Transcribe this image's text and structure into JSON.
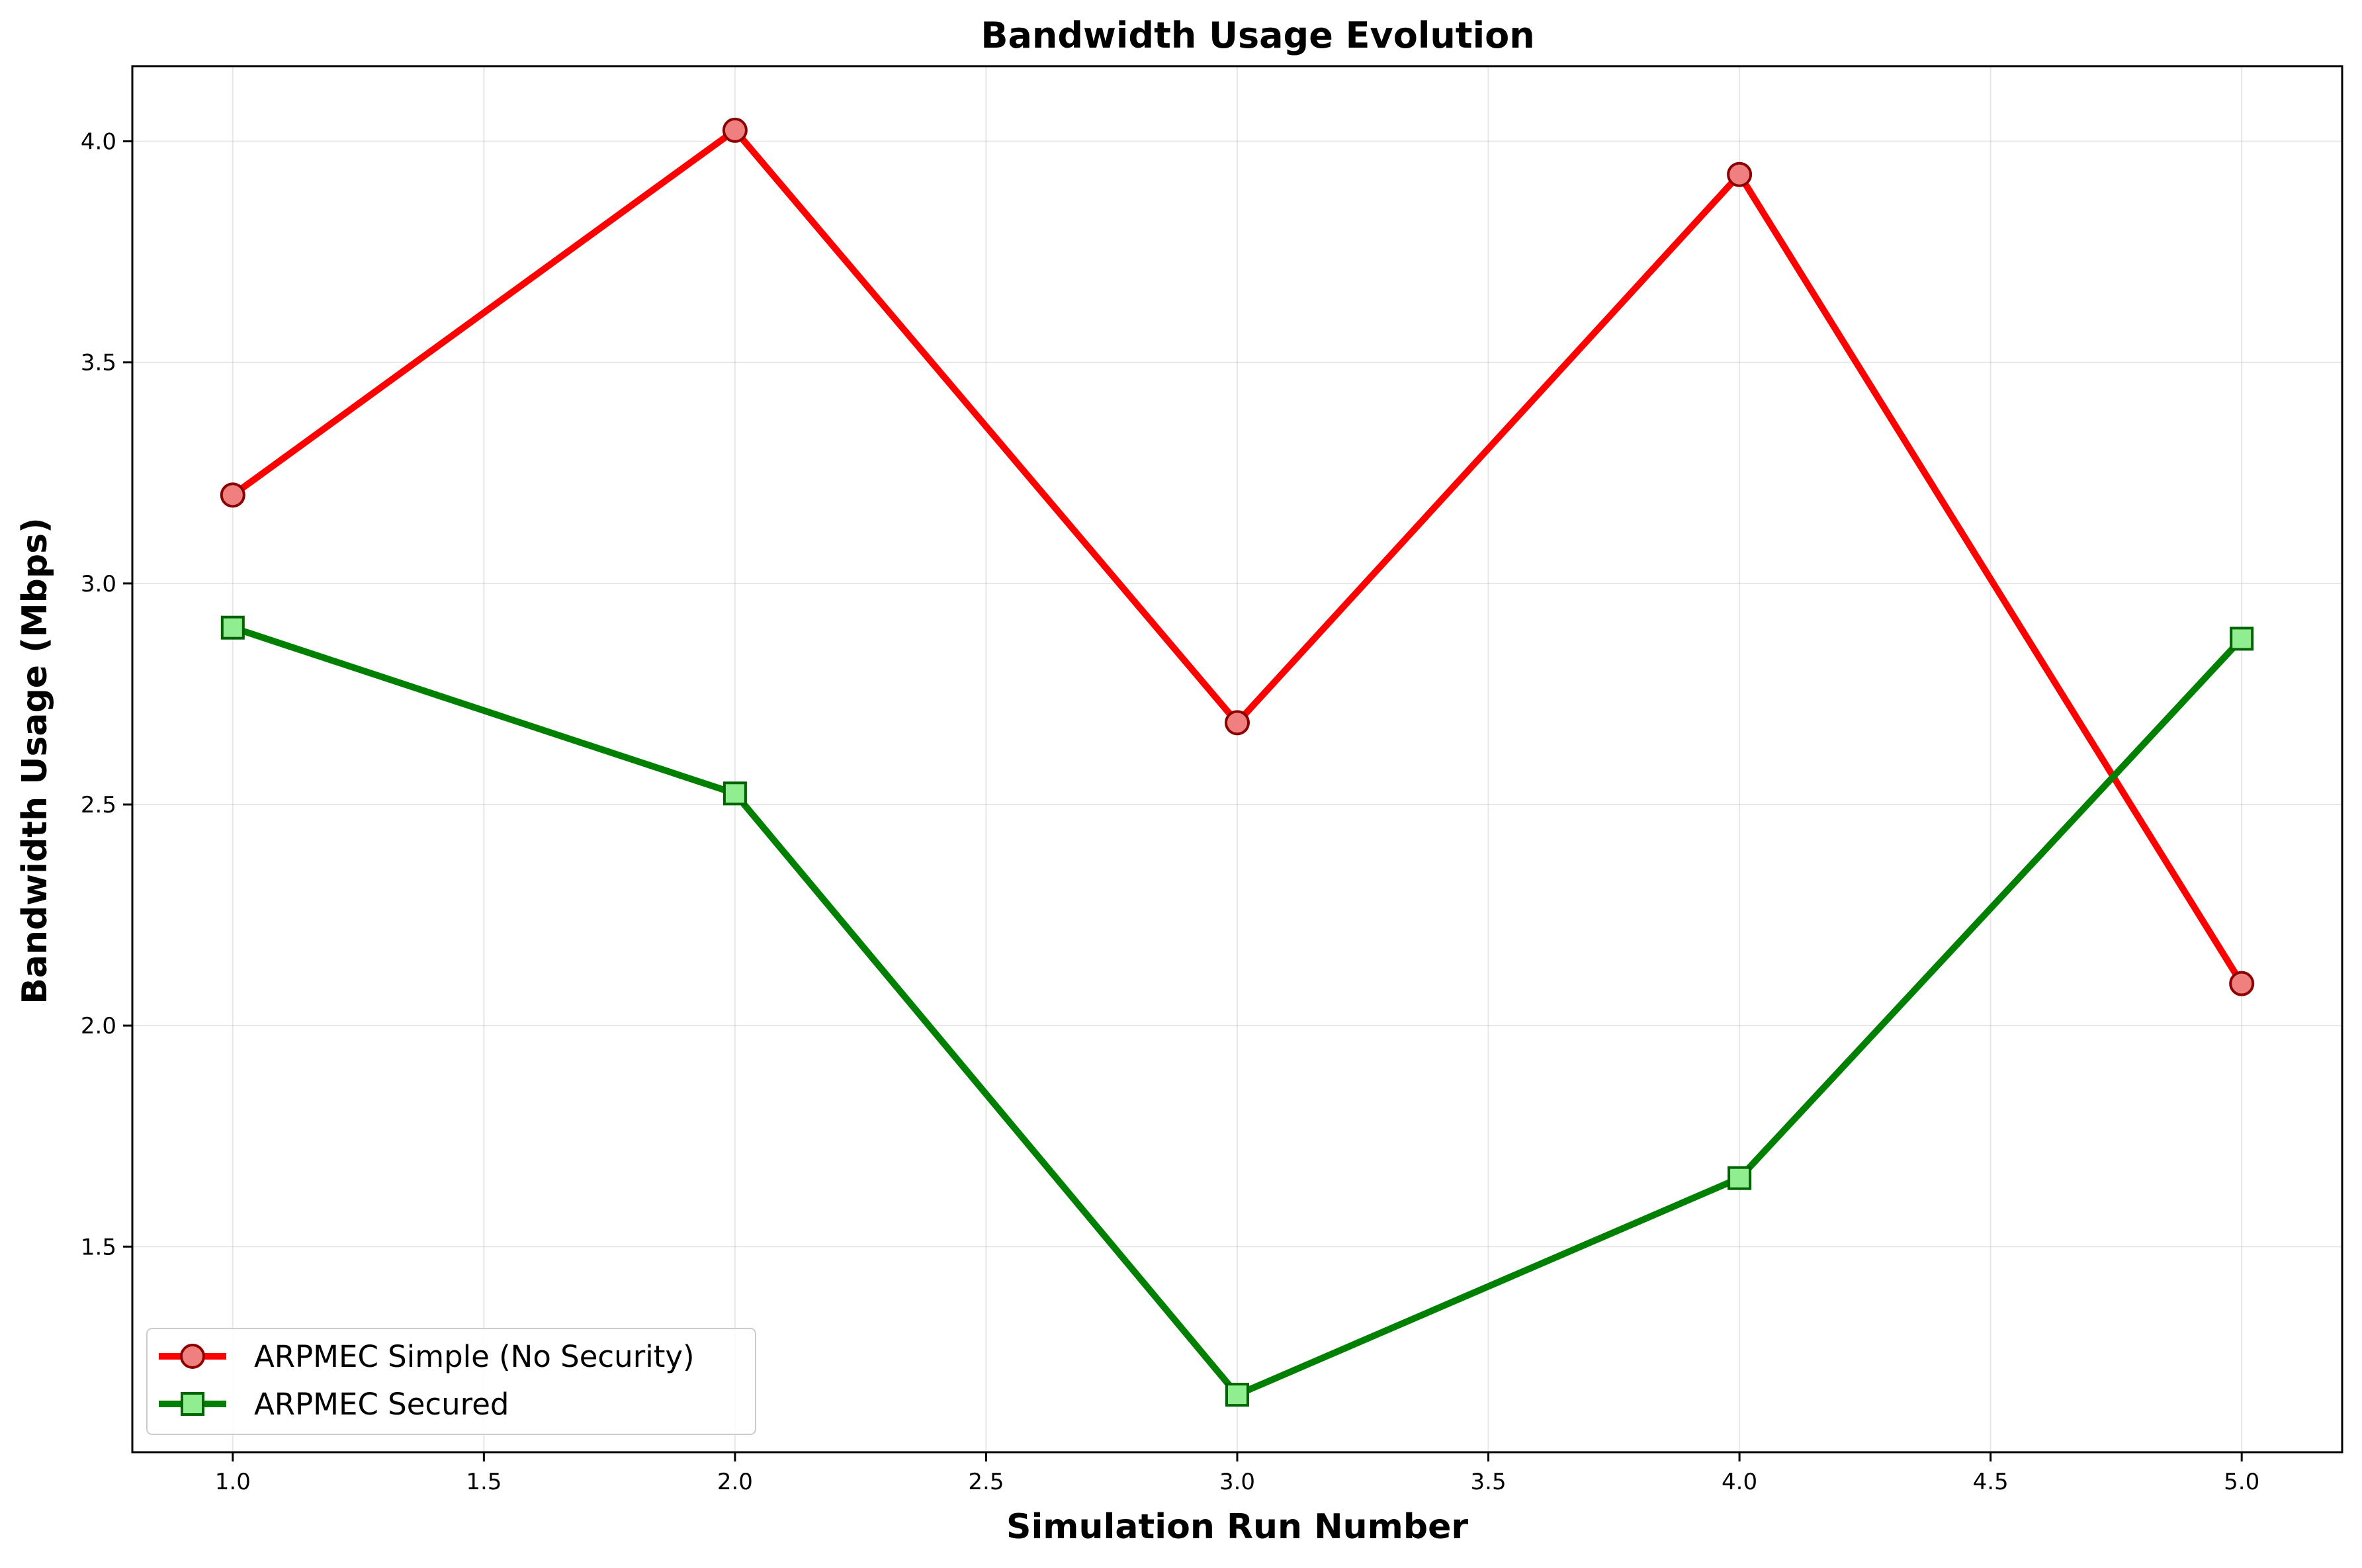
{
  "chart_data": {
    "type": "line",
    "title": "Bandwidth Usage Evolution",
    "xlabel": "Simulation Run Number",
    "ylabel": "Bandwidth Usage (Mbps)",
    "xlim": [
      0.8,
      5.2
    ],
    "ylim": [
      1.035,
      4.17
    ],
    "xticks": [
      "1.0",
      "1.5",
      "2.0",
      "2.5",
      "3.0",
      "3.5",
      "4.0",
      "4.5",
      "5.0"
    ],
    "yticks": [
      "1.5",
      "2.0",
      "2.5",
      "3.0",
      "3.5",
      "4.0"
    ],
    "grid": true,
    "legend_position": "lower-left",
    "x": [
      1,
      2,
      3,
      4,
      5
    ],
    "series": [
      {
        "name": "ARPMEC Simple (No Security)",
        "values": [
          3.2,
          4.025,
          2.685,
          3.925,
          2.095
        ],
        "color": "#ff0000",
        "marker": "circle",
        "marker_fill": "#f08080",
        "marker_edge": "#8b0000"
      },
      {
        "name": "ARPMEC Secured",
        "values": [
          2.9,
          2.525,
          1.165,
          1.655,
          2.875
        ],
        "color": "#008000",
        "marker": "square",
        "marker_fill": "#90ee90",
        "marker_edge": "#006400"
      }
    ]
  }
}
